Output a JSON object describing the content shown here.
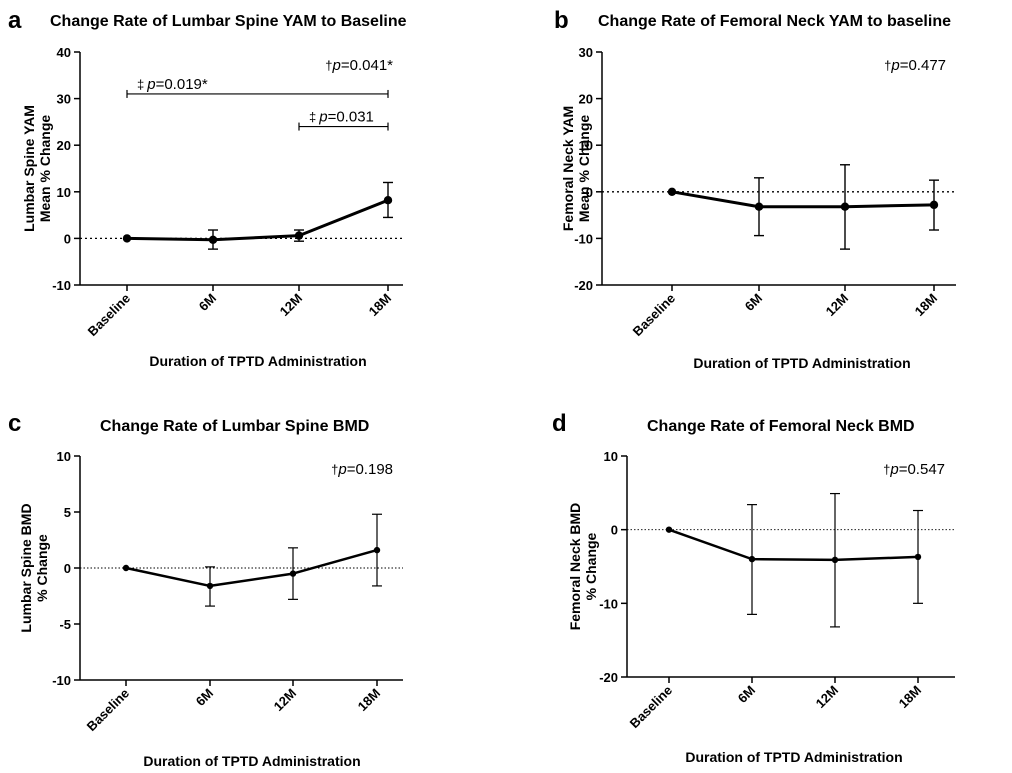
{
  "chart_data": [
    {
      "panel": "a",
      "type": "line",
      "title": "Change Rate of Lumbar Spine YAM to Baseline",
      "ylabel_lines": [
        "Lumbar Spine YAM",
        "Mean % Change"
      ],
      "xlabel": "Duration of TPTD Administration",
      "categories": [
        "Baseline",
        "6M",
        "12M",
        "18M"
      ],
      "ylim": [
        -10,
        40
      ],
      "yticks": [
        -10,
        0,
        10,
        20,
        30,
        40
      ],
      "series": [
        {
          "values": [
            0,
            -0.3,
            0.6,
            8.2
          ],
          "err_low": [
            0,
            -2.3,
            -0.6,
            4.5
          ],
          "err_high": [
            0,
            1.8,
            1.8,
            12.0
          ]
        }
      ],
      "annotations": [
        {
          "symbol": "†",
          "p_label": "p",
          "p_value": "=0.041*"
        }
      ],
      "brackets": [
        {
          "from": 0,
          "to": 3,
          "y": 31,
          "symbol": "‡",
          "p_label": "p",
          "p_value": "=0.019*"
        },
        {
          "from": 2,
          "to": 3,
          "y": 24,
          "symbol": "‡",
          "p_label": "p",
          "p_value": "=0.031"
        }
      ],
      "style": "thick"
    },
    {
      "panel": "b",
      "type": "line",
      "title": "Change Rate of Femoral Neck YAM to baseline",
      "ylabel_lines": [
        "Femoral Neck YAM",
        "Mean % Change"
      ],
      "xlabel": "Duration of TPTD Administration",
      "categories": [
        "Baseline",
        "6M",
        "12M",
        "18M"
      ],
      "ylim": [
        -20,
        30
      ],
      "yticks": [
        -20,
        -10,
        0,
        10,
        20,
        30
      ],
      "series": [
        {
          "values": [
            0,
            -3.2,
            -3.2,
            -2.8
          ],
          "err_low": [
            0,
            -9.4,
            -12.3,
            -8.2
          ],
          "err_high": [
            0,
            3.0,
            5.8,
            2.5
          ]
        }
      ],
      "annotations": [
        {
          "symbol": "†",
          "p_label": "p",
          "p_value": "=0.477"
        }
      ],
      "brackets": [],
      "style": "thick"
    },
    {
      "panel": "c",
      "type": "line",
      "title": "Change Rate of Lumbar Spine BMD",
      "ylabel_lines": [
        "Lumbar Spine BMD",
        "% Change"
      ],
      "xlabel": "Duration of TPTD Administration",
      "categories": [
        "Baseline",
        "6M",
        "12M",
        "18M"
      ],
      "ylim": [
        -10,
        10
      ],
      "yticks": [
        -10,
        -5,
        0,
        5,
        10
      ],
      "series": [
        {
          "values": [
            0,
            -1.6,
            -0.5,
            1.6
          ],
          "err_low": [
            0,
            -3.4,
            -2.8,
            -1.6
          ],
          "err_high": [
            0,
            0.1,
            1.8,
            4.8
          ]
        }
      ],
      "annotations": [
        {
          "symbol": "†",
          "p_label": "p",
          "p_value": "=0.198"
        }
      ],
      "brackets": [],
      "style": "thin"
    },
    {
      "panel": "d",
      "type": "line",
      "title": "Change Rate of Femoral Neck BMD",
      "ylabel_lines": [
        "Femoral Neck BMD",
        "% Change"
      ],
      "xlabel": "Duration of TPTD Administration",
      "categories": [
        "Baseline",
        "6M",
        "12M",
        "18M"
      ],
      "ylim": [
        -20,
        10
      ],
      "yticks": [
        -20,
        -10,
        0,
        10
      ],
      "series": [
        {
          "values": [
            0,
            -4.0,
            -4.1,
            -3.7
          ],
          "err_low": [
            0,
            -11.5,
            -13.2,
            -10.0
          ],
          "err_high": [
            0,
            3.4,
            4.9,
            2.6
          ]
        }
      ],
      "annotations": [
        {
          "symbol": "†",
          "p_label": "p",
          "p_value": "=0.547"
        }
      ],
      "brackets": [],
      "style": "thin"
    }
  ]
}
